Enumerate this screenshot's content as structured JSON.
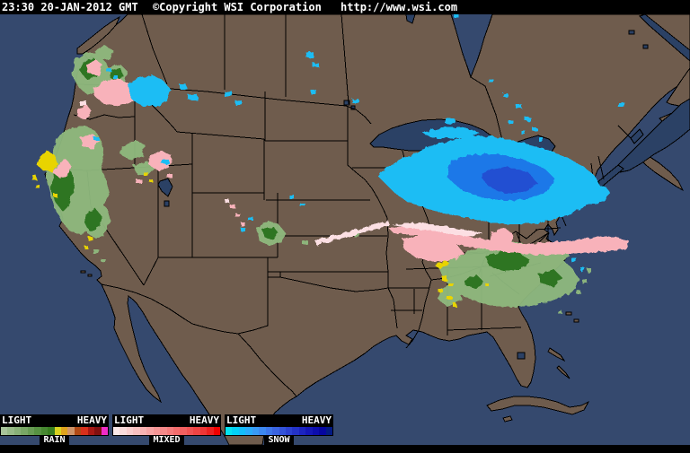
{
  "header": {
    "timestamp": "23:30 20-JAN-2012 GMT",
    "copyright": "©Copyright WSI Corporation",
    "url": "http://www.wsi.com"
  },
  "legend": {
    "light_label": "LIGHT",
    "heavy_label": "HEAVY",
    "scales": [
      {
        "name": "RAIN",
        "colors": [
          "#a8c49a",
          "#98ba88",
          "#88b077",
          "#78a665",
          "#689c54",
          "#579242",
          "#478831",
          "#377e1f",
          "#d9d31f",
          "#dfa31c",
          "#cf9468",
          "#b14a16",
          "#d8301c",
          "#a81814",
          "#821010",
          "#f02cc8"
        ]
      },
      {
        "name": "MIXED",
        "colors": [
          "#fbe9e9",
          "#fadbdb",
          "#f9cdcd",
          "#f8c0c0",
          "#f7b2b2",
          "#f6a4a4",
          "#f59696",
          "#f48989",
          "#f37b7b",
          "#f26d6d",
          "#f16060",
          "#f05252",
          "#ef4444",
          "#ee3636",
          "#ec2020",
          "#f00000"
        ]
      },
      {
        "name": "SNOW",
        "colors": [
          "#04e2ef",
          "#02d0f5",
          "#14bdfa",
          "#2aabfa",
          "#389af6",
          "#3d88f0",
          "#3d76e9",
          "#3a64e1",
          "#3353d9",
          "#2c42d1",
          "#2433c8",
          "#1c24c0",
          "#1417b7",
          "#0c0dae",
          "#0606a0",
          "#031a84"
        ]
      }
    ]
  },
  "map": {
    "palette": {
      "ocean": "#35496e",
      "land": "#6f5c4d",
      "lake": "#2b4165",
      "border": "#000000",
      "rain_light": "#8fb97e",
      "rain_heavy": "#2f7420",
      "rain_intense": "#e8d400",
      "mixed_light": "#fcdfe3",
      "mixed": "#f8b2ba",
      "snow_light": "#1fbdf4",
      "snow": "#1f78e8",
      "snow_heavy": "#2050d2"
    }
  }
}
